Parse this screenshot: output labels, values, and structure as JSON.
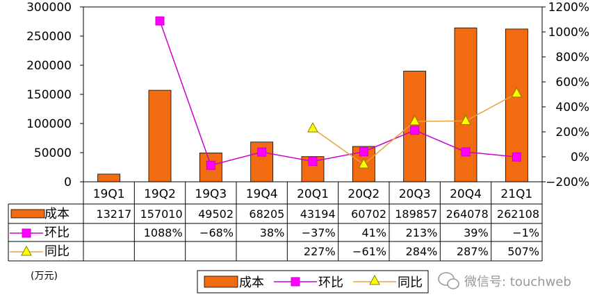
{
  "chart_data": {
    "type": "bar",
    "categories": [
      "19Q1",
      "19Q2",
      "19Q3",
      "19Q4",
      "20Q1",
      "20Q2",
      "20Q3",
      "20Q4",
      "21Q1"
    ],
    "series": [
      {
        "name": "成本",
        "kind": "bar",
        "axis": "left",
        "color": "#F26B10",
        "values": [
          13217,
          157010,
          49502,
          68205,
          43194,
          60702,
          189857,
          264078,
          262108
        ],
        "labels": [
          "13217",
          "157010",
          "49502",
          "68205",
          "43194",
          "60702",
          "189857",
          "264078",
          "262108"
        ]
      },
      {
        "name": "环比",
        "kind": "line",
        "axis": "right",
        "color": "#CC00CC",
        "marker": "square",
        "values": [
          null,
          1088,
          -68,
          38,
          -37,
          41,
          213,
          39,
          -1
        ],
        "labels": [
          "",
          "1088%",
          "−68%",
          "38%",
          "−37%",
          "41%",
          "213%",
          "39%",
          "−1%"
        ]
      },
      {
        "name": "同比",
        "kind": "line",
        "axis": "right",
        "color": "#E8A040",
        "marker": "triangle",
        "values": [
          null,
          null,
          null,
          null,
          227,
          -61,
          284,
          287,
          507
        ],
        "labels": [
          "",
          "",
          "",
          "",
          "227%",
          "−61%",
          "284%",
          "287%",
          "507%"
        ]
      }
    ],
    "yleft": {
      "min": 0,
      "max": 300000,
      "ticks": [
        "0",
        "50000",
        "100000",
        "150000",
        "200000",
        "250000",
        "300000"
      ]
    },
    "yright": {
      "min": -200,
      "max": 1200,
      "ticks": [
        "−200%",
        "0%",
        "200%",
        "400%",
        "600%",
        "800%",
        "1000%",
        "1200%"
      ]
    },
    "unit_label": "(万元)",
    "legend": {
      "placement": "bottom",
      "items": [
        "成本",
        "环比",
        "同比"
      ]
    },
    "grid": false
  },
  "watermark": {
    "text": "微信号: touchweb",
    "icon": "wechat-icon"
  }
}
